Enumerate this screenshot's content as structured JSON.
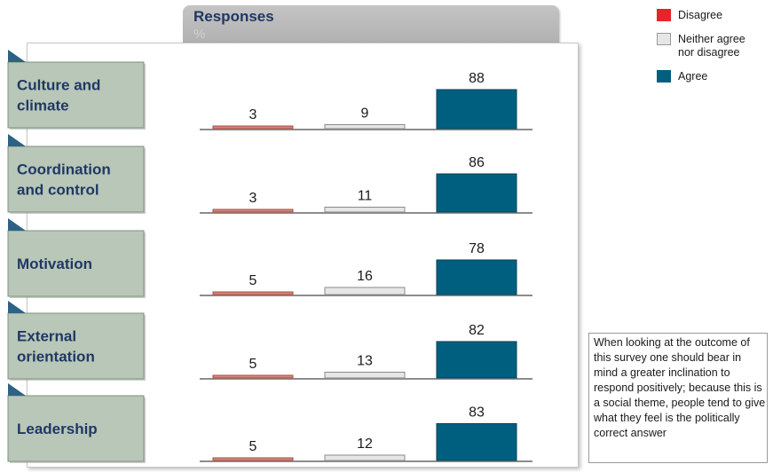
{
  "header": {
    "title": "Responses",
    "unit": "%"
  },
  "legend": [
    {
      "label": "Disagree",
      "color": "#e8232a"
    },
    {
      "label": "Neither agree nor disagree",
      "label_lines": [
        "Neither agree",
        "nor disagree"
      ],
      "color": "#e6e6e6"
    },
    {
      "label": "Agree",
      "color": "#005f7f"
    }
  ],
  "note": "When looking at the outcome of this survey one should bear in mind a greater inclination to respond positively; because this is a social theme, people tend to give what they feel is the politically correct answer",
  "chart_data": {
    "type": "bar",
    "title": "Responses",
    "unit": "%",
    "categories": [
      "Disagree",
      "Neither agree nor disagree",
      "Agree"
    ],
    "panels": [
      {
        "label": "Culture and climate",
        "label_lines": [
          "Culture and",
          "climate"
        ],
        "values": [
          3,
          9,
          88
        ]
      },
      {
        "label": "Coordination and control",
        "label_lines": [
          "Coordination",
          "and control"
        ],
        "values": [
          3,
          11,
          86
        ]
      },
      {
        "label": "Motivation",
        "label_lines": [
          "Motivation"
        ],
        "values": [
          5,
          16,
          78
        ]
      },
      {
        "label": "External orientation",
        "label_lines": [
          "External",
          "orientation"
        ],
        "values": [
          5,
          13,
          82
        ]
      },
      {
        "label": "Leadership",
        "label_lines": [
          "Leadership"
        ],
        "values": [
          5,
          12,
          83
        ]
      }
    ],
    "colors": [
      "#d08a80",
      "#e6e6e6",
      "#005f7f"
    ],
    "ylim": [
      0,
      100
    ],
    "grid": false,
    "legend_position": "top-right"
  }
}
